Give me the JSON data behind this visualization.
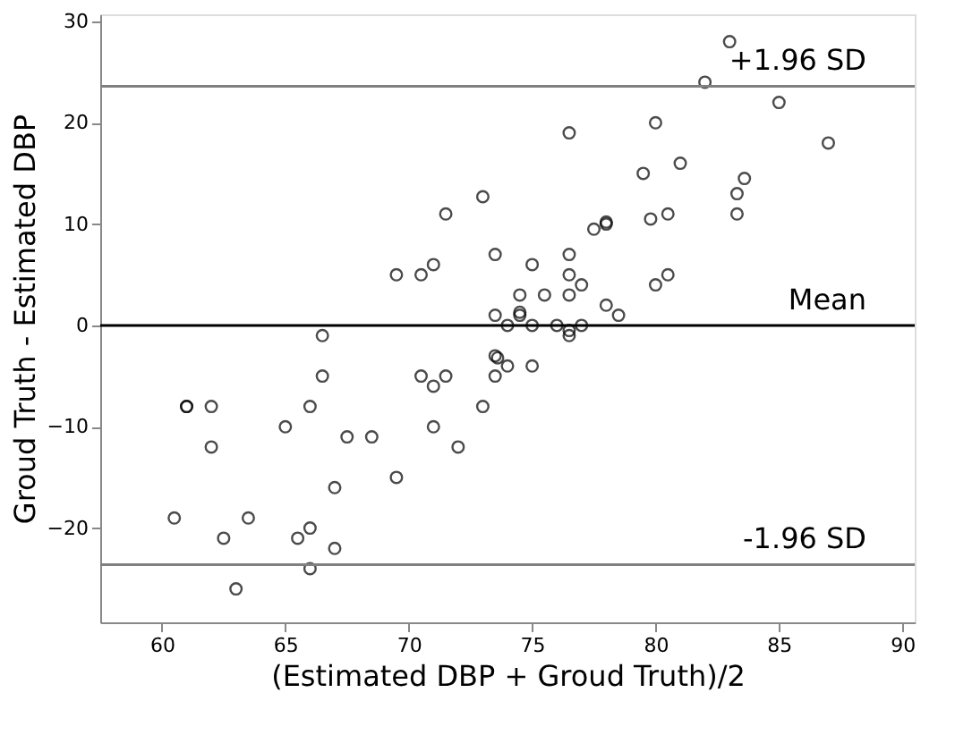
{
  "chart_data": {
    "type": "scatter",
    "xlabel": "(Estimated DBP + Groud Truth)/2",
    "ylabel": "Groud Truth - Estimated DBP",
    "x": [
      60.5,
      61,
      61,
      62,
      62,
      62.5,
      63,
      63.5,
      65,
      65.5,
      66,
      66,
      66,
      66.5,
      66.5,
      67,
      67,
      67.5,
      68.5,
      69.5,
      69.5,
      70.5,
      70.5,
      71,
      71,
      71,
      71.5,
      71.5,
      72,
      73,
      73,
      73.5,
      73.5,
      73.5,
      73.5,
      73.6,
      74,
      74,
      74.5,
      74.5,
      74.5,
      75,
      75,
      75,
      75.5,
      76,
      76.5,
      76.5,
      76.5,
      76.5,
      76.5,
      76.5,
      77,
      77,
      77.5,
      78,
      78,
      78,
      78.5,
      79.5,
      79.8,
      80,
      80,
      80.5,
      80.5,
      81,
      82,
      83,
      83.3,
      83.3,
      83.6,
      85,
      87
    ],
    "series": [
      {
        "color": "#000000",
        "values": [
          -19,
          -8,
          -8,
          -8,
          -12,
          -21,
          -26,
          -19,
          -10,
          -21,
          -20,
          -24,
          -8,
          -5,
          -1,
          -16,
          -22,
          -11,
          -11,
          -15,
          5,
          5,
          -5,
          -6,
          -10,
          6,
          -5,
          11,
          -12,
          12.7,
          -8,
          7,
          1,
          -3,
          -5,
          -3.2,
          -4,
          0,
          3,
          1,
          1.3,
          6,
          0,
          -4,
          3,
          0,
          19,
          7,
          5,
          3,
          -1,
          -0.5,
          4,
          0,
          9.5,
          10,
          10.2,
          2,
          1,
          15,
          10.5,
          4,
          20,
          5,
          11,
          16,
          24,
          28,
          11,
          13,
          14.5,
          22,
          18
        ]
      }
    ],
    "marker": "circle",
    "grid": false,
    "legend": false,
    "xlim": [
      57.5,
      90.5
    ],
    "ylim": [
      -29.3,
      30.7
    ],
    "xticks": [
      60,
      65,
      70,
      75,
      80,
      85,
      90
    ],
    "yticks": [
      -20,
      -10,
      0,
      10,
      20,
      30
    ],
    "ref_lines": [
      {
        "axis": "y",
        "value": 23.6,
        "label": "+1.96 SD",
        "color": "#808080"
      },
      {
        "axis": "y",
        "value": 0,
        "label": "Mean",
        "color": "#000000"
      },
      {
        "axis": "y",
        "value": -23.6,
        "label": "-1.96 SD",
        "color": "#808080"
      }
    ]
  }
}
